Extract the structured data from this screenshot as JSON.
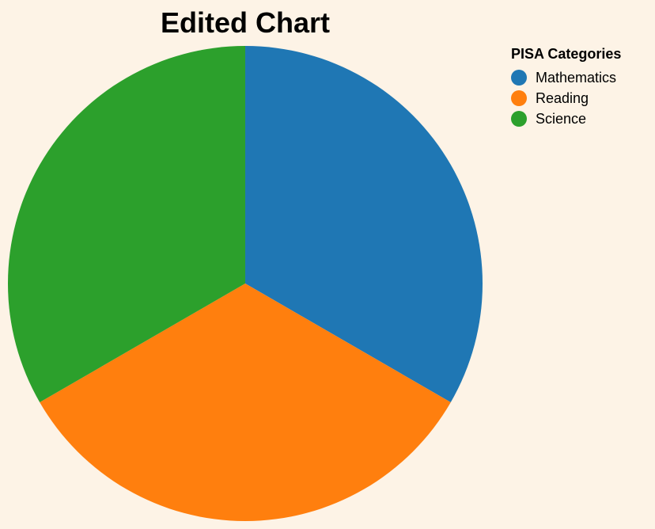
{
  "chart_data": {
    "type": "pie",
    "title": "Edited Chart",
    "legend_title": "PISA Categories",
    "legend_position": "top-right",
    "categories": [
      "Mathematics",
      "Reading",
      "Science"
    ],
    "values": [
      1,
      1,
      1
    ],
    "colors": [
      "#1f77b4",
      "#ff7f0e",
      "#2ca02c"
    ]
  }
}
